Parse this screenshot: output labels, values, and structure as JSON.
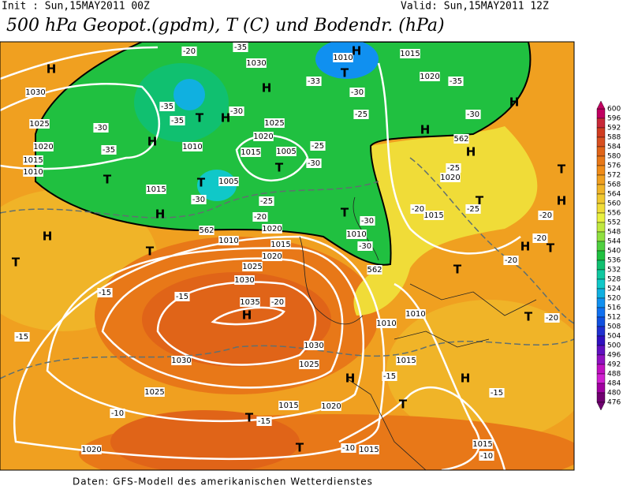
{
  "header": {
    "init": "Init : Sun,15MAY2011 00Z",
    "valid": "Valid: Sun,15MAY2011 12Z",
    "title": "500 hPa Geopot.(gpdm), T (C) und Bodendr. (hPa)"
  },
  "footer": "Daten: GFS-Modell des amerikanischen Wetterdienstes",
  "colorbar": {
    "levels": [
      600,
      596,
      592,
      588,
      584,
      580,
      576,
      572,
      568,
      564,
      560,
      556,
      552,
      548,
      544,
      540,
      536,
      532,
      528,
      524,
      520,
      516,
      512,
      508,
      504,
      500,
      496,
      492,
      488,
      484,
      480,
      476
    ],
    "colors": [
      "#c00060",
      "#c82838",
      "#d03c20",
      "#d85020",
      "#e06418",
      "#e87818",
      "#f08c18",
      "#f0a020",
      "#f0b428",
      "#f0c830",
      "#f0dc38",
      "#e8f040",
      "#c0e840",
      "#90e040",
      "#50d040",
      "#20c040",
      "#10c070",
      "#10c8a0",
      "#10c8c8",
      "#10b0e0",
      "#1090f0",
      "#1070f0",
      "#1050e0",
      "#2030d0",
      "#3010c0",
      "#6010c0",
      "#9010c0",
      "#c010c0",
      "#d020d0",
      "#a000a0",
      "#700070"
    ]
  },
  "map_labels": [
    "H",
    "1030",
    "1025",
    "1020",
    "1015",
    "1010",
    "-30",
    "-35",
    "H",
    "H",
    "T",
    "1015",
    "1005",
    "T",
    "H",
    "T",
    "T",
    "1010",
    "1015",
    "1020",
    "1025",
    "1030",
    "1035",
    "H",
    "-15",
    "-15",
    "-20",
    "-15",
    "1030",
    "1025",
    "-10",
    "T",
    "-15",
    "1020",
    "1015",
    "1020",
    "1025",
    "1030",
    "H",
    "T",
    "-15",
    "1015",
    "1010",
    "1010",
    "T",
    "H",
    "-15",
    "1015",
    "-10",
    "1015",
    "-10",
    "T",
    "T",
    "-20",
    "T",
    "-20",
    "H",
    "-20",
    "-20",
    "H",
    "T",
    "T",
    "-25",
    "1015",
    "-20",
    "T",
    "-30",
    "1010",
    "-30",
    "562",
    "562",
    "562",
    "H",
    "1020",
    "-25",
    "H",
    "-30",
    "H",
    "1020",
    "-35",
    "T",
    "-30",
    "-25",
    "-33",
    "H",
    "-30",
    "1025",
    "1020",
    "1015",
    "1005",
    "-25",
    "-30",
    "1010",
    "T",
    "H",
    "-35",
    "-35",
    "T",
    "-30",
    "-25",
    "-20",
    "1020",
    "1030",
    "1010",
    "H",
    "1015",
    "-35",
    "-20"
  ]
}
